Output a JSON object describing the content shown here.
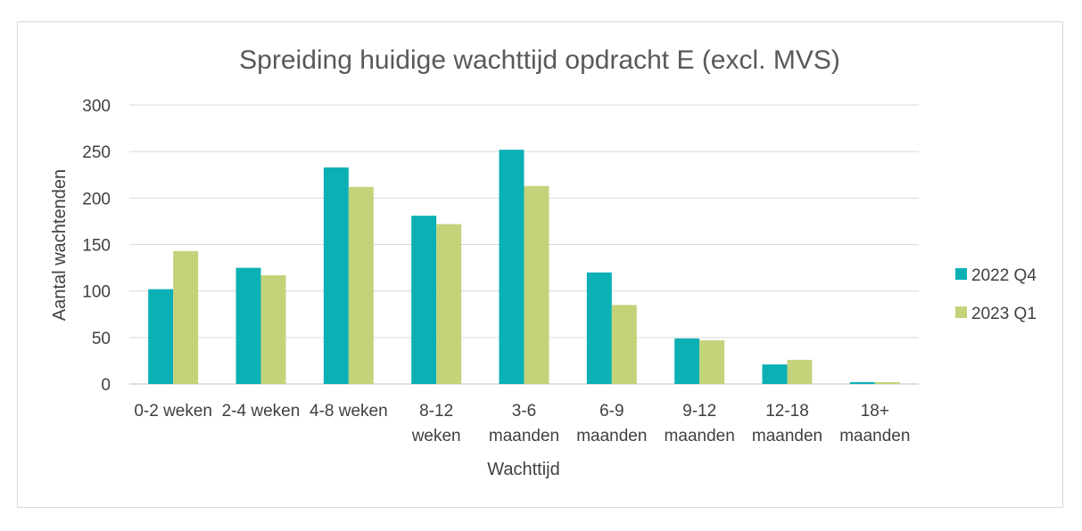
{
  "chart_data": {
    "type": "bar",
    "title": "Spreiding huidige wachttijd opdracht E (excl. MVS)",
    "xlabel": "Wachttijd",
    "ylabel": "Aantal wachtenden",
    "ylim": [
      0,
      300
    ],
    "yticks": [
      0,
      50,
      100,
      150,
      200,
      250,
      300
    ],
    "grid": true,
    "legend_position": "right",
    "categories": [
      [
        "0-2 weken"
      ],
      [
        "2-4 weken"
      ],
      [
        "4-8 weken"
      ],
      [
        "8-12",
        "weken"
      ],
      [
        "3-6",
        "maanden"
      ],
      [
        "6-9",
        "maanden"
      ],
      [
        "9-12",
        "maanden"
      ],
      [
        "12-18",
        "maanden"
      ],
      [
        "18+",
        "maanden"
      ]
    ],
    "series": [
      {
        "name": "2022 Q4",
        "color": "#0bb0b5",
        "values": [
          102,
          125,
          233,
          181,
          252,
          120,
          49,
          21,
          2
        ]
      },
      {
        "name": "2023 Q1",
        "color": "#c3d37a",
        "values": [
          143,
          117,
          212,
          172,
          213,
          85,
          47,
          26,
          2
        ]
      }
    ]
  }
}
